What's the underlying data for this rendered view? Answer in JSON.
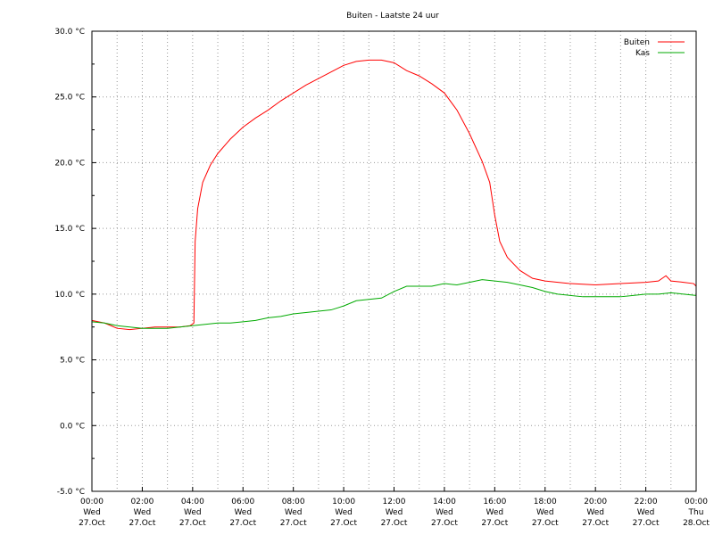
{
  "chart_data": {
    "type": "line",
    "title": "Buiten - Laatste 24 uur",
    "xlabel": "",
    "ylabel": "",
    "ylim": [
      -5,
      30
    ],
    "xlim_hours": [
      0,
      24
    ],
    "y_ticks": [
      {
        "value": -5,
        "label": "-5.0 °C"
      },
      {
        "value": 0,
        "label": "0.0 °C"
      },
      {
        "value": 5,
        "label": "5.0 °C"
      },
      {
        "value": 10,
        "label": "10.0 °C"
      },
      {
        "value": 15,
        "label": "15.0 °C"
      },
      {
        "value": 20,
        "label": "20.0 °C"
      },
      {
        "value": 25,
        "label": "25.0 °C"
      },
      {
        "value": 30,
        "label": "30.0 °C"
      }
    ],
    "x_ticks": [
      {
        "hour": 0,
        "time": "00:00",
        "day": "Wed",
        "date": "27.Oct"
      },
      {
        "hour": 2,
        "time": "02:00",
        "day": "Wed",
        "date": "27.Oct"
      },
      {
        "hour": 4,
        "time": "04:00",
        "day": "Wed",
        "date": "27.Oct"
      },
      {
        "hour": 6,
        "time": "06:00",
        "day": "Wed",
        "date": "27.Oct"
      },
      {
        "hour": 8,
        "time": "08:00",
        "day": "Wed",
        "date": "27.Oct"
      },
      {
        "hour": 10,
        "time": "10:00",
        "day": "Wed",
        "date": "27.Oct"
      },
      {
        "hour": 12,
        "time": "12:00",
        "day": "Wed",
        "date": "27.Oct"
      },
      {
        "hour": 14,
        "time": "14:00",
        "day": "Wed",
        "date": "27.Oct"
      },
      {
        "hour": 16,
        "time": "16:00",
        "day": "Wed",
        "date": "27.Oct"
      },
      {
        "hour": 18,
        "time": "18:00",
        "day": "Wed",
        "date": "27.Oct"
      },
      {
        "hour": 20,
        "time": "20:00",
        "day": "Wed",
        "date": "27.Oct"
      },
      {
        "hour": 22,
        "time": "22:00",
        "day": "Wed",
        "date": "27.Oct"
      },
      {
        "hour": 24,
        "time": "00:00",
        "day": "Thu",
        "date": "28.Oct"
      }
    ],
    "grid": true,
    "legend_position": "top-right",
    "series": [
      {
        "name": "Buiten",
        "color": "#ff0000",
        "points": [
          [
            0,
            8.0
          ],
          [
            0.5,
            7.8
          ],
          [
            1.0,
            7.4
          ],
          [
            1.5,
            7.3
          ],
          [
            2.0,
            7.4
          ],
          [
            2.5,
            7.5
          ],
          [
            3.0,
            7.5
          ],
          [
            3.5,
            7.5
          ],
          [
            3.9,
            7.6
          ],
          [
            4.05,
            7.8
          ],
          [
            4.1,
            14.0
          ],
          [
            4.2,
            16.5
          ],
          [
            4.4,
            18.5
          ],
          [
            4.7,
            19.8
          ],
          [
            5.0,
            20.7
          ],
          [
            5.5,
            21.8
          ],
          [
            6.0,
            22.7
          ],
          [
            6.5,
            23.4
          ],
          [
            7.0,
            24.0
          ],
          [
            7.5,
            24.7
          ],
          [
            8.0,
            25.3
          ],
          [
            8.5,
            25.9
          ],
          [
            9.0,
            26.4
          ],
          [
            9.5,
            26.9
          ],
          [
            10.0,
            27.4
          ],
          [
            10.5,
            27.7
          ],
          [
            11.0,
            27.8
          ],
          [
            11.5,
            27.8
          ],
          [
            12.0,
            27.6
          ],
          [
            12.5,
            27.0
          ],
          [
            13.0,
            26.6
          ],
          [
            13.5,
            26.0
          ],
          [
            14.0,
            25.3
          ],
          [
            14.5,
            24.0
          ],
          [
            15.0,
            22.2
          ],
          [
            15.5,
            20.1
          ],
          [
            15.8,
            18.5
          ],
          [
            16.0,
            16.0
          ],
          [
            16.2,
            14.0
          ],
          [
            16.5,
            12.8
          ],
          [
            17.0,
            11.8
          ],
          [
            17.5,
            11.2
          ],
          [
            18.0,
            11.0
          ],
          [
            19.0,
            10.8
          ],
          [
            20.0,
            10.7
          ],
          [
            21.0,
            10.8
          ],
          [
            22.0,
            10.9
          ],
          [
            22.5,
            11.0
          ],
          [
            22.8,
            11.4
          ],
          [
            23.0,
            11.0
          ],
          [
            23.5,
            10.9
          ],
          [
            23.9,
            10.8
          ],
          [
            24.0,
            10.6
          ]
        ]
      },
      {
        "name": "Kas",
        "color": "#00aa00",
        "points": [
          [
            0,
            7.9
          ],
          [
            0.5,
            7.8
          ],
          [
            1.0,
            7.6
          ],
          [
            1.5,
            7.5
          ],
          [
            2.0,
            7.4
          ],
          [
            2.5,
            7.4
          ],
          [
            3.0,
            7.4
          ],
          [
            3.5,
            7.5
          ],
          [
            4.0,
            7.6
          ],
          [
            4.5,
            7.7
          ],
          [
            5.0,
            7.8
          ],
          [
            5.5,
            7.8
          ],
          [
            6.0,
            7.9
          ],
          [
            6.5,
            8.0
          ],
          [
            7.0,
            8.2
          ],
          [
            7.5,
            8.3
          ],
          [
            8.0,
            8.5
          ],
          [
            8.5,
            8.6
          ],
          [
            9.0,
            8.7
          ],
          [
            9.5,
            8.8
          ],
          [
            10.0,
            9.1
          ],
          [
            10.5,
            9.5
          ],
          [
            11.0,
            9.6
          ],
          [
            11.5,
            9.7
          ],
          [
            12.0,
            10.2
          ],
          [
            12.5,
            10.6
          ],
          [
            13.0,
            10.6
          ],
          [
            13.5,
            10.6
          ],
          [
            14.0,
            10.8
          ],
          [
            14.5,
            10.7
          ],
          [
            15.0,
            10.9
          ],
          [
            15.5,
            11.1
          ],
          [
            16.0,
            11.0
          ],
          [
            16.5,
            10.9
          ],
          [
            17.0,
            10.7
          ],
          [
            17.5,
            10.5
          ],
          [
            18.0,
            10.2
          ],
          [
            18.5,
            10.0
          ],
          [
            19.0,
            9.9
          ],
          [
            19.5,
            9.8
          ],
          [
            20.0,
            9.8
          ],
          [
            20.5,
            9.8
          ],
          [
            21.0,
            9.8
          ],
          [
            21.5,
            9.9
          ],
          [
            22.0,
            10.0
          ],
          [
            22.5,
            10.0
          ],
          [
            23.0,
            10.1
          ],
          [
            23.5,
            10.0
          ],
          [
            24.0,
            9.9
          ]
        ]
      }
    ]
  }
}
